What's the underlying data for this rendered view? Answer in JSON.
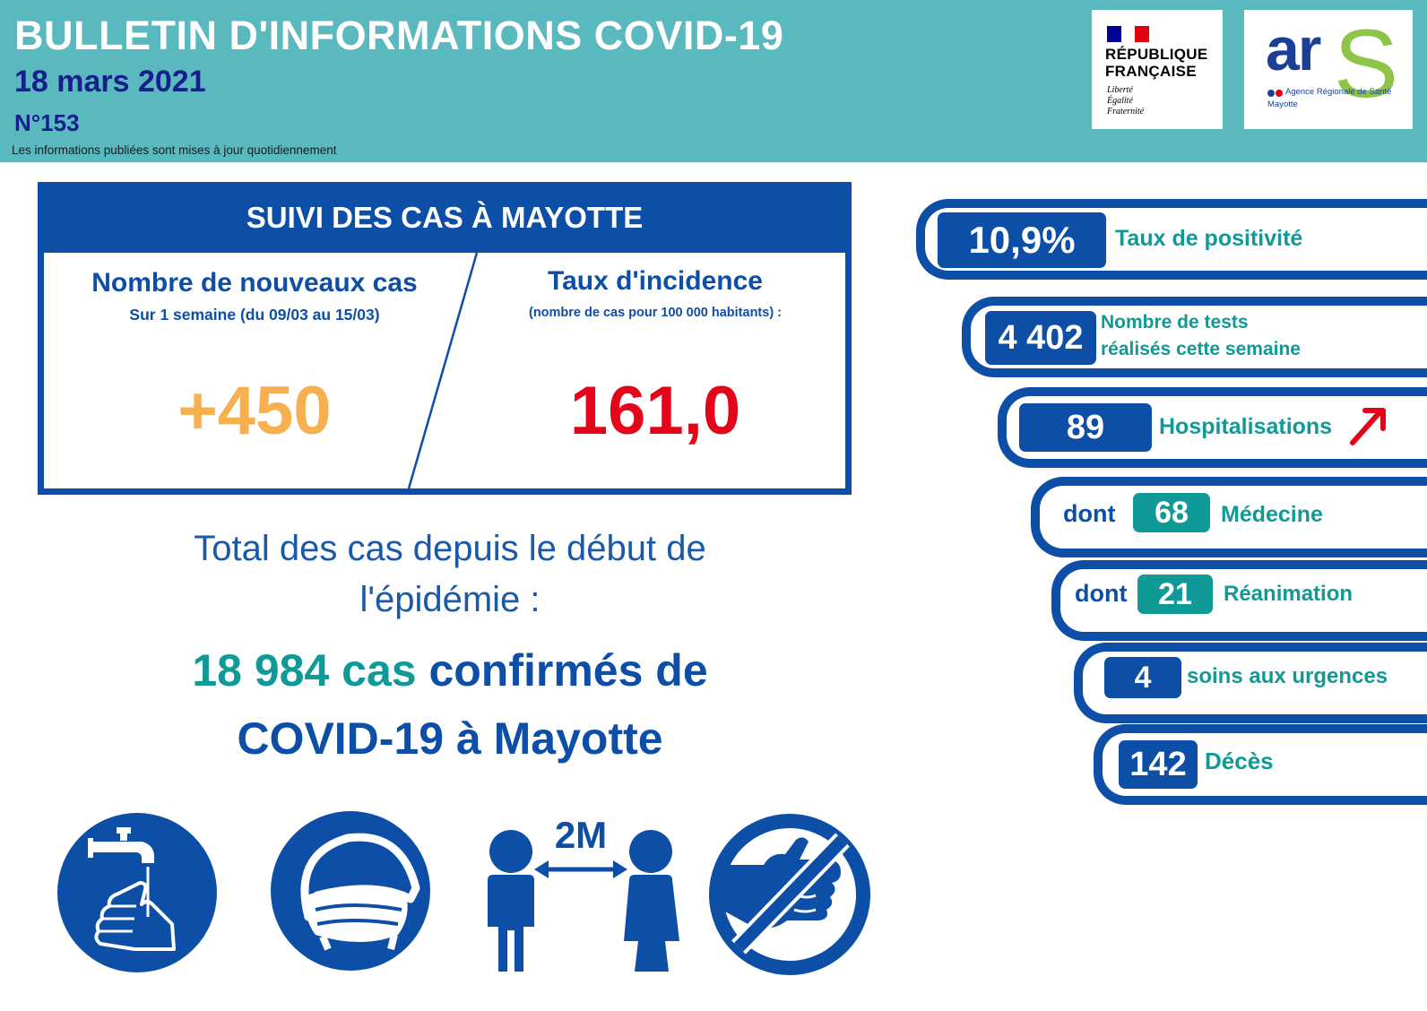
{
  "header": {
    "title": "BULLETIN D'INFORMATIONS COVID-19",
    "date": "18 mars 2021",
    "number": "N°153",
    "note": "Les informations publiées sont mises à jour quotidiennement"
  },
  "logos": {
    "republique": {
      "name_line1": "RÉPUBLIQUE",
      "name_line2": "FRANÇAISE",
      "motto1": "Liberté",
      "motto2": "Égalité",
      "motto3": "Fraternité"
    },
    "ars": {
      "wordmark_ar": "ar",
      "wordmark_s": "S",
      "caption": "Agence Régionale de Santé",
      "region": "Mayotte"
    }
  },
  "case_box": {
    "title": "SUIVI DES CAS À MAYOTTE",
    "new_cases": {
      "heading": "Nombre de nouveaux cas",
      "subheading": "Sur 1 semaine (du 09/03 au 15/03)",
      "value": "+450"
    },
    "incidence": {
      "heading": "Taux d'incidence",
      "subheading": "(nombre de cas pour 100 000 habitants) :",
      "value": "161,0"
    }
  },
  "total": {
    "intro_line1": "Total des cas depuis le début de",
    "intro_line2": "l'épidémie :",
    "count": "18 984 cas",
    "rest_line1": " confirmés de",
    "rest_line2": "COVID-19 à Mayotte"
  },
  "pictograms": [
    "handwash-icon",
    "mask-icon",
    "distance-icon",
    "no-handshake-icon"
  ],
  "distance_label": "2M",
  "stats": {
    "positivity": {
      "value": "10,9%",
      "label": "Taux de positivité"
    },
    "tests": {
      "value": "4 402",
      "label_line1": "Nombre de tests",
      "label_line2": "réalisés cette semaine"
    },
    "hospitalisations": {
      "value": "89",
      "label": "Hospitalisations",
      "trend": "up"
    },
    "medecine": {
      "prefix": "dont",
      "value": "68",
      "label": "Médecine"
    },
    "reanimation": {
      "prefix": "dont",
      "value": "21",
      "label": "Réanimation"
    },
    "urgences": {
      "value": "4",
      "label": "soins aux urgences"
    },
    "deces": {
      "value": "142",
      "label": "Décès"
    }
  },
  "colors": {
    "header_teal": "#5ab8bf",
    "navy": "#171f8c",
    "blue": "#0d4ea6",
    "teal": "#0f9a97",
    "orange": "#f6b04f",
    "red": "#e3061b"
  }
}
